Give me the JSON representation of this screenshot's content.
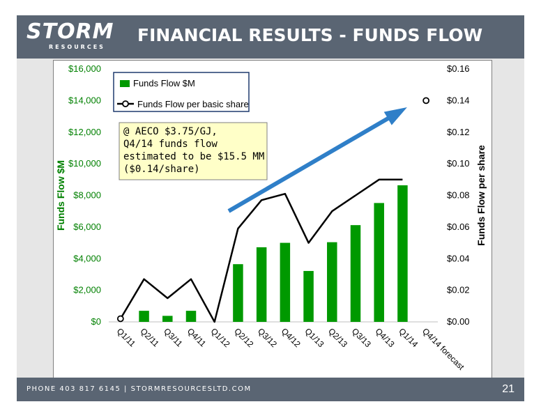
{
  "header": {
    "logo_main": "STORM",
    "logo_sub": "RESOURCES",
    "title": "FINANCIAL RESULTS - FUNDS FLOW"
  },
  "footer": {
    "contact": "PHONE 403 817 6145  |  STORMRESOURCESLTD.COM",
    "page_number": "21"
  },
  "colors": {
    "bar": "#009900",
    "line": "#000000",
    "arrow": "#2f7fc8",
    "note_bg": "#ffffc8",
    "header_bg": "#5a6573"
  },
  "chart_data": {
    "type": "bar",
    "categories": [
      "Q1/11",
      "Q2/11",
      "Q3/11",
      "Q4/11",
      "Q1/12",
      "Q2/12",
      "Q3/12",
      "Q4/12",
      "Q1/13",
      "Q2/13",
      "Q3/13",
      "Q4/13",
      "Q1/14",
      "Q4/14 forecast"
    ],
    "series": [
      {
        "name": "Funds Flow $M",
        "kind": "bar",
        "axis": "left",
        "values": [
          0,
          700,
          380,
          700,
          0,
          3650,
          4720,
          5000,
          3220,
          5040,
          6120,
          7520,
          8640,
          null
        ]
      },
      {
        "name": "Funds Flow per basic share",
        "kind": "line",
        "axis": "right",
        "values": [
          0.002,
          0.027,
          0.015,
          0.027,
          0.0,
          0.059,
          0.077,
          0.081,
          0.05,
          0.07,
          0.08,
          0.09,
          0.09,
          0.14
        ],
        "forecast_index": 13
      }
    ],
    "y_left": {
      "label": "Funds Flow $M",
      "range": [
        0,
        16000
      ],
      "ticks": [
        "$0",
        "$2,000",
        "$4,000",
        "$6,000",
        "$8,000",
        "$10,000",
        "$12,000",
        "$14,000",
        "$16,000"
      ]
    },
    "y_right": {
      "label": "Funds Flow per share",
      "range": [
        0,
        0.16
      ],
      "ticks": [
        "$0.00",
        "$0.02",
        "$0.04",
        "$0.06",
        "$0.08",
        "$0.10",
        "$0.12",
        "$0.14",
        "$0.16"
      ]
    },
    "annotation": {
      "lines": [
        "@ AECO $3.75/GJ,",
        "Q4/14 funds flow",
        "estimated to be $15.5 MM",
        "($0.14/share)"
      ]
    },
    "legend_position": "top-left",
    "grid": false
  }
}
